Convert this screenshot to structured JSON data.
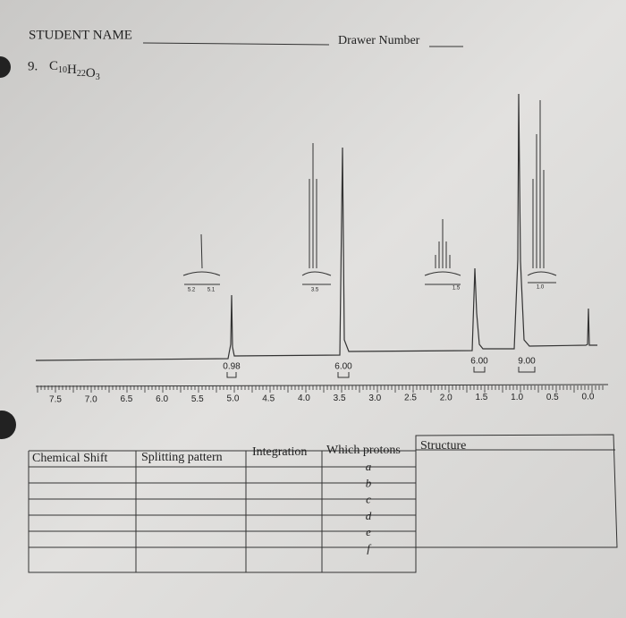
{
  "header": {
    "student_label": "STUDENT NAME",
    "drawer_label": "Drawer Number",
    "problem_number": "9.",
    "formula": [
      [
        "C",
        "10"
      ],
      [
        "H",
        "22"
      ],
      [
        "O",
        "3"
      ]
    ]
  },
  "spectrum": {
    "axis_labels": [
      "7.5",
      "7.0",
      "6.5",
      "6.0",
      "5.5",
      "5.0",
      "4.5",
      "4.0",
      "3.5",
      "3.0",
      "2.5",
      "2.0",
      "1.5",
      "1.0",
      "0.5",
      "0.0"
    ],
    "integrations": [
      "0.98",
      "6.00",
      "6.00",
      "9.00"
    ],
    "inset_labels": [
      [
        "5.2",
        "5.1"
      ],
      [
        "3.5"
      ],
      [
        "1.5"
      ],
      [
        "1.0"
      ]
    ]
  },
  "table": {
    "headers": [
      "Chemical Shift",
      "Splitting pattern",
      "Integration",
      "Which protons",
      "Structure"
    ],
    "protons": [
      "a",
      "b",
      "c",
      "d",
      "e",
      "f"
    ]
  }
}
